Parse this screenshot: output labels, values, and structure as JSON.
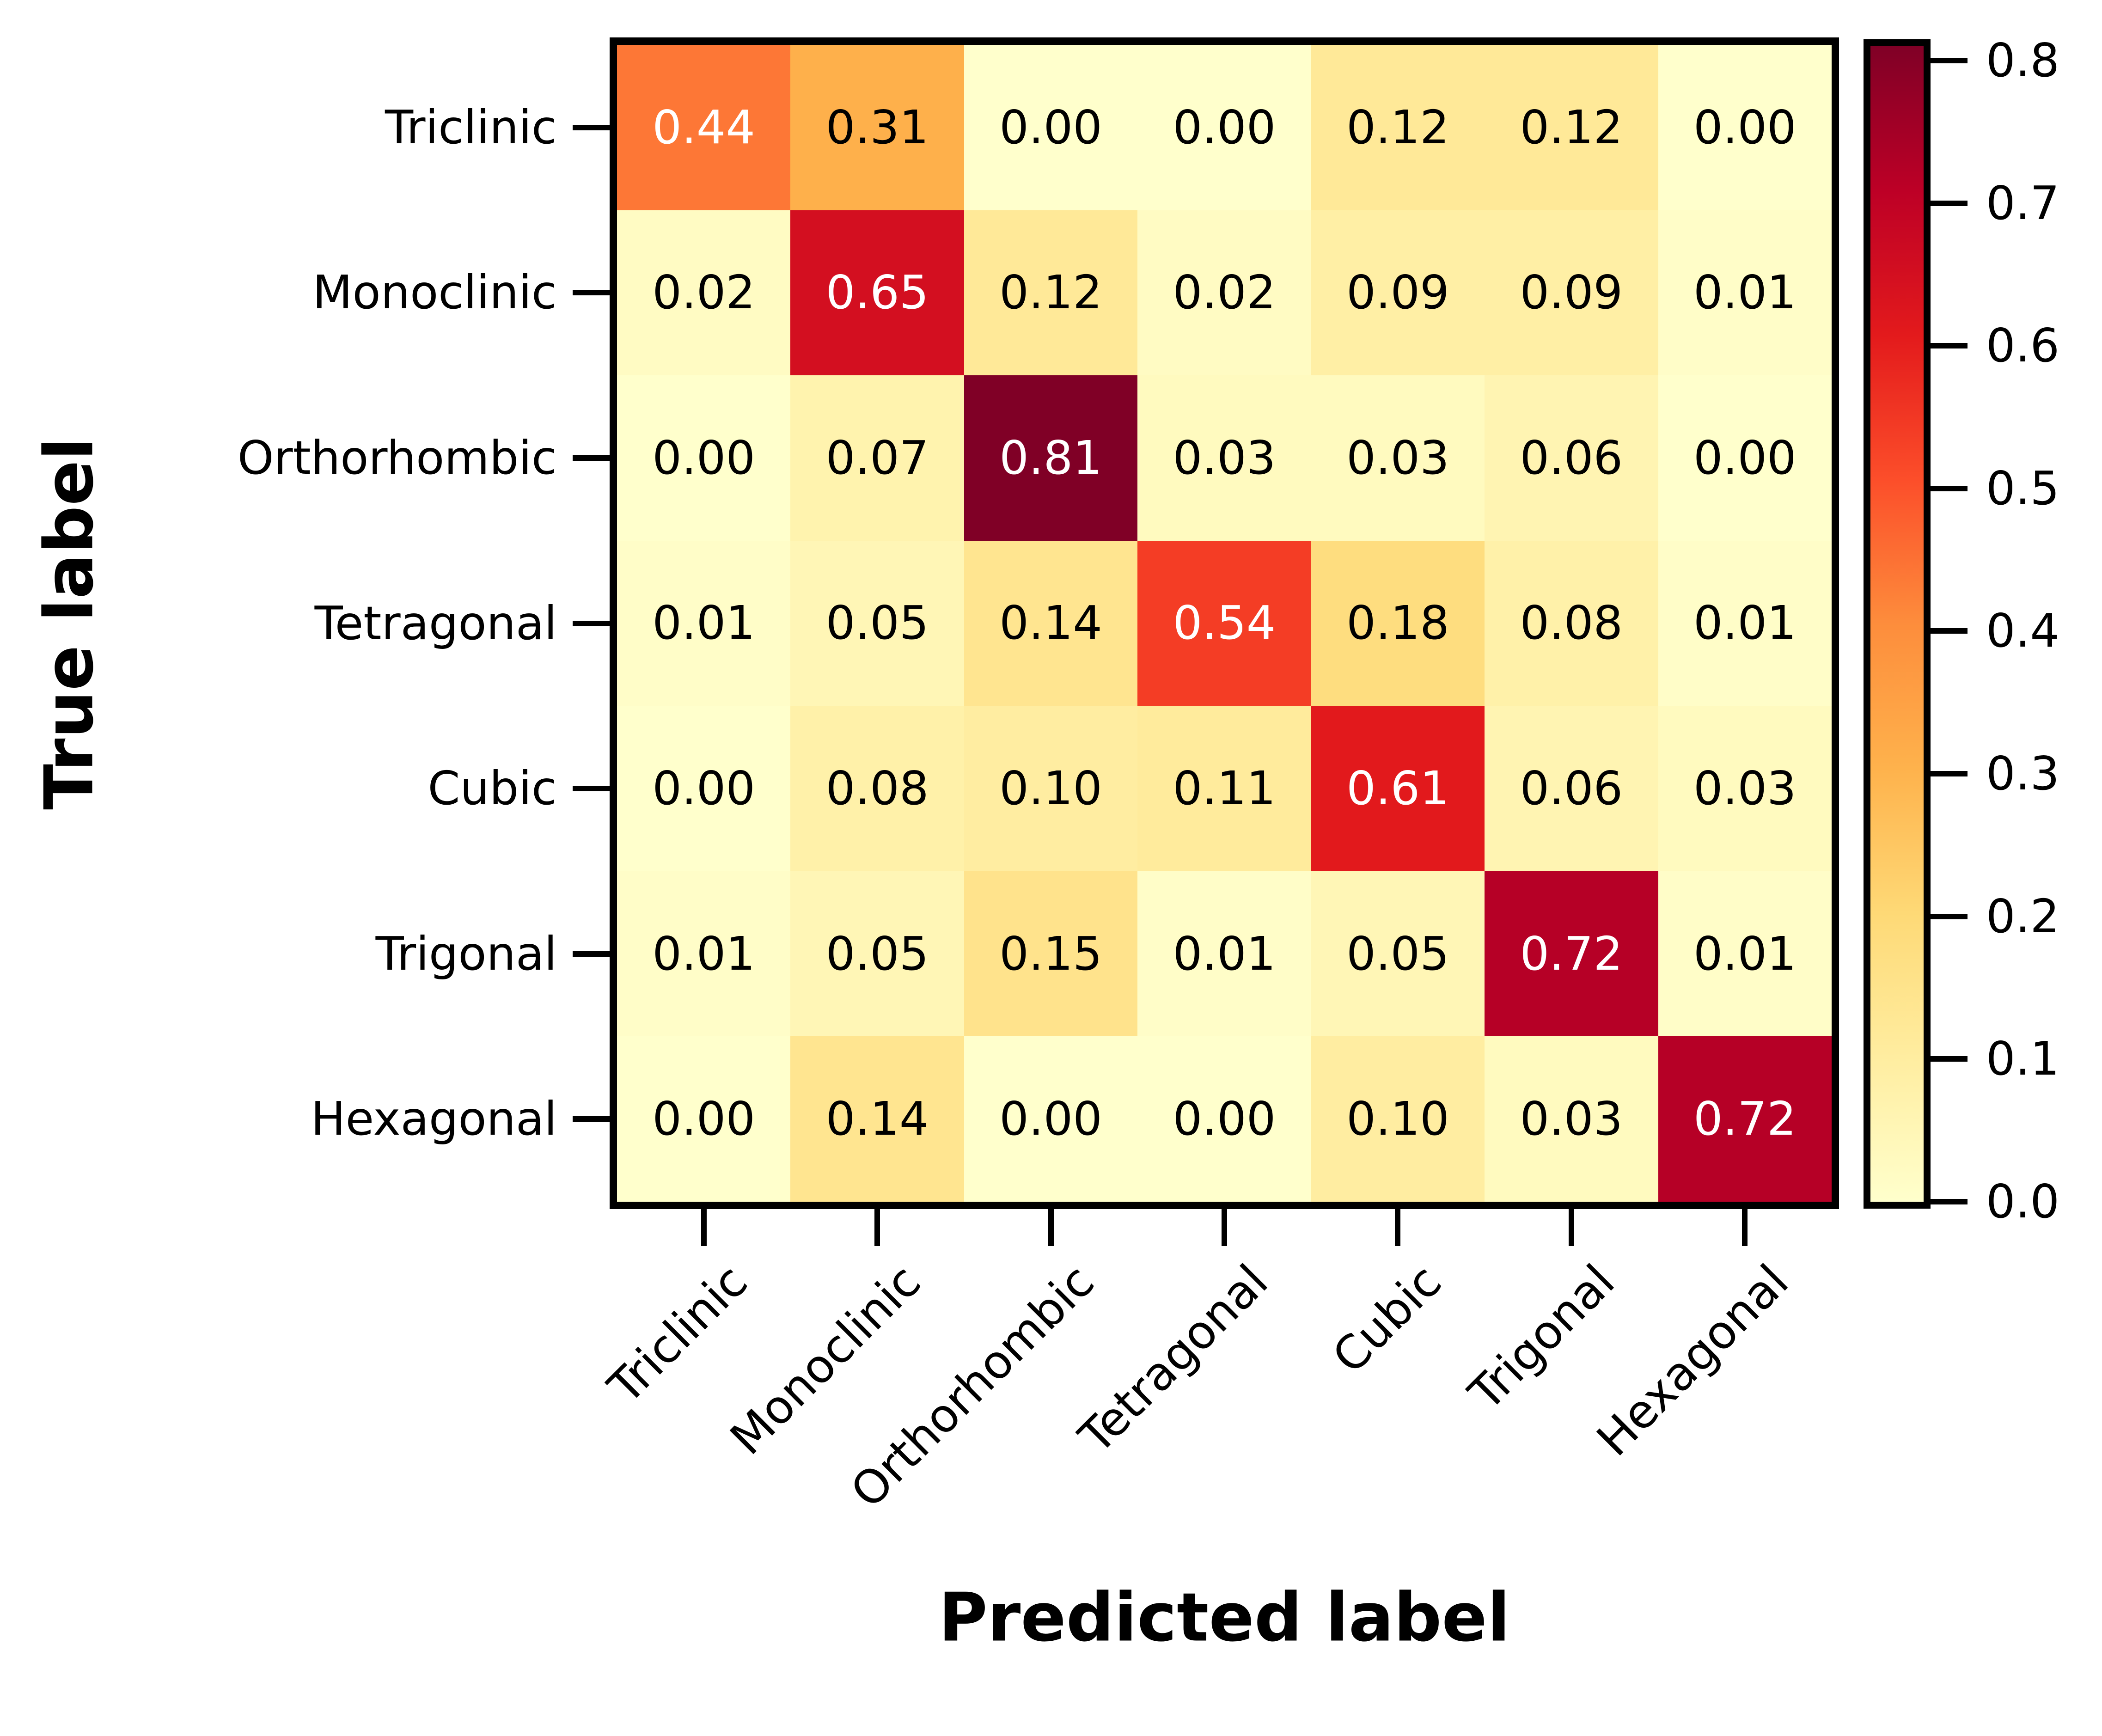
{
  "figure": {
    "background_color": "#ffffff",
    "spine_color": "#000000",
    "text_color": "#000000"
  },
  "chart_data": {
    "type": "heatmap",
    "title": "",
    "xlabel": "Predicted label",
    "ylabel": "True label",
    "x_categories": [
      "Triclinic",
      "Monoclinic",
      "Orthorhombic",
      "Tetragonal",
      "Cubic",
      "Trigonal",
      "Hexagonal"
    ],
    "y_categories": [
      "Triclinic",
      "Monoclinic",
      "Orthorhombic",
      "Tetragonal",
      "Cubic",
      "Trigonal",
      "Hexagonal"
    ],
    "matrix": [
      [
        0.44,
        0.31,
        0.0,
        0.0,
        0.12,
        0.12,
        0.0
      ],
      [
        0.02,
        0.65,
        0.12,
        0.02,
        0.09,
        0.09,
        0.01
      ],
      [
        0.0,
        0.07,
        0.81,
        0.03,
        0.03,
        0.06,
        0.0
      ],
      [
        0.01,
        0.05,
        0.14,
        0.54,
        0.18,
        0.08,
        0.01
      ],
      [
        0.0,
        0.08,
        0.1,
        0.11,
        0.61,
        0.06,
        0.03
      ],
      [
        0.01,
        0.05,
        0.15,
        0.01,
        0.05,
        0.72,
        0.01
      ],
      [
        0.0,
        0.14,
        0.0,
        0.0,
        0.1,
        0.03,
        0.72
      ]
    ],
    "vmin": 0.0,
    "vmax": 0.81,
    "colormap": {
      "name": "YlOrRd",
      "stops": [
        "#ffffcc",
        "#ffeda0",
        "#fed976",
        "#feb24c",
        "#fd8d3c",
        "#fc4e2a",
        "#e31a1c",
        "#bd0026",
        "#800026"
      ]
    },
    "cell_text_colors": {
      "light": "#ffffff",
      "dark": "#000000"
    },
    "colorbar": {
      "position": "right",
      "tick_labels": [
        "0.0",
        "0.1",
        "0.2",
        "0.3",
        "0.4",
        "0.5",
        "0.6",
        "0.7",
        "0.8"
      ]
    },
    "grid": false,
    "x_tick_rotation_deg": 45
  }
}
